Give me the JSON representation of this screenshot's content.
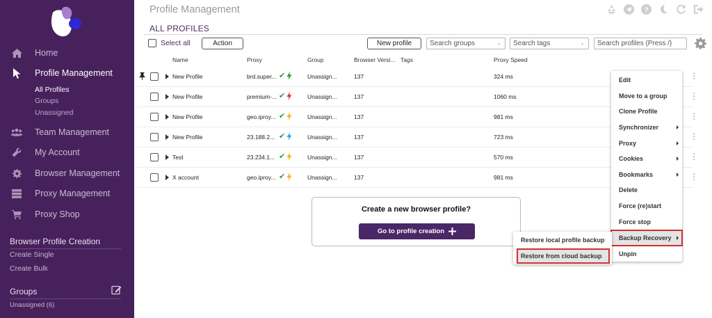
{
  "header": {
    "title": "Profile Management"
  },
  "sidebar": {
    "nav": [
      {
        "label": "Home",
        "icon": "home-icon"
      },
      {
        "label": "Profile Management",
        "icon": "cursor-icon"
      },
      {
        "label": "Team Management",
        "icon": "team-icon"
      },
      {
        "label": "My Account",
        "icon": "wrench-icon"
      },
      {
        "label": "Browser Management",
        "icon": "gear-icon"
      },
      {
        "label": "Proxy Management",
        "icon": "server-icon"
      },
      {
        "label": "Proxy Shop",
        "icon": "cart-icon"
      }
    ],
    "subnav": [
      "All Profiles",
      "Groups",
      "Unassigned"
    ],
    "creation_title": "Browser Profile Creation",
    "creation_links": [
      "Create Single",
      "Create Bulk"
    ],
    "groups_title": "Groups",
    "groups_items": [
      "Unassigned (6)"
    ]
  },
  "main": {
    "section_title": "ALL PROFILES",
    "select_all": "Select all",
    "action_button": "Action",
    "new_profile_button": "New profile",
    "search_groups": "Search groups",
    "search_tags": "Search tags",
    "search_profiles": "Search profiles (Press /)"
  },
  "table": {
    "headers": [
      "Name",
      "Proxy",
      "Group",
      "Browser Versi...",
      "Tags",
      "Proxy Speed"
    ],
    "rows": [
      {
        "name": "New Profile",
        "proxy": "brd.super...",
        "group": "Unassign...",
        "version": "137",
        "tags": "",
        "speed": "324 ms",
        "bolt": "#2e9a3a",
        "pinned": true
      },
      {
        "name": "New Profile",
        "proxy": "premium-...",
        "group": "Unassign...",
        "version": "137",
        "tags": "",
        "speed": "1060 ms",
        "bolt": "#e03030",
        "pinned": false
      },
      {
        "name": "New Profile",
        "proxy": "geo.iproy...",
        "group": "Unassign...",
        "version": "137",
        "tags": "",
        "speed": "981 ms",
        "bolt": "#f2b01e",
        "pinned": false
      },
      {
        "name": "New Profile",
        "proxy": "23.188.2...",
        "group": "Unassign...",
        "version": "137",
        "tags": "",
        "speed": "723 ms",
        "bolt": "#3aa0e8",
        "pinned": false
      },
      {
        "name": "Test",
        "proxy": "23.234.1...",
        "group": "Unassign...",
        "version": "137",
        "tags": "",
        "speed": "570 ms",
        "bolt": "#f2b01e",
        "pinned": false
      },
      {
        "name": "X account",
        "proxy": "geo.iproy...",
        "group": "Unassign...",
        "version": "137",
        "tags": "",
        "speed": "981 ms",
        "bolt": "#f2b01e",
        "pinned": false
      }
    ]
  },
  "empty_card": {
    "title": "Create a new browser profile?",
    "button": "Go to profile creation"
  },
  "context_menu": {
    "items": [
      "Edit",
      "Move to a group",
      "Clone Profile",
      "Synchronizer",
      "Proxy",
      "Cookies",
      "Bookmarks",
      "Delete",
      "Force (re)start",
      "Force stop",
      "Backup Recovery",
      "Unpin"
    ],
    "submenu": [
      "Restore local profile backup",
      "Restore from cloud backup"
    ]
  },
  "colors": {
    "sidebar": "#47215c",
    "accent": "#4a2766",
    "highlight_border": "#d12d2d"
  }
}
